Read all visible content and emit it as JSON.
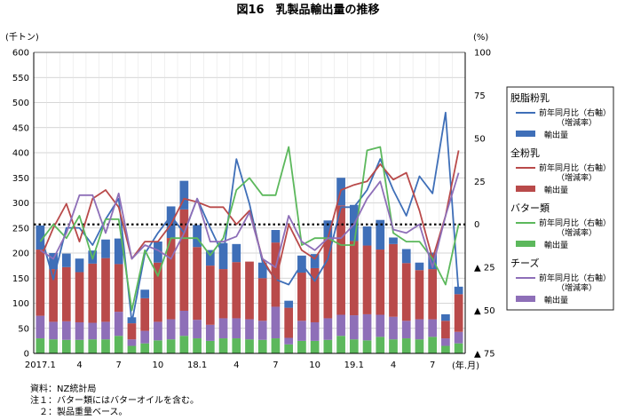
{
  "chart_data": {
    "type": "bar",
    "title": "図16　乳製品輸出量の推移",
    "left_axis_unit": "(千トン)",
    "right_axis_unit": "(%)",
    "x_axis_unit": "(年.月)",
    "ylim_left": [
      0,
      600
    ],
    "ylim_right": [
      -75,
      100
    ],
    "yticks_left": [
      "0",
      "50",
      "100",
      "150",
      "200",
      "250",
      "300",
      "350",
      "400",
      "450",
      "500",
      "550",
      "600"
    ],
    "yticks_right": [
      {
        "value": 100,
        "label": "100"
      },
      {
        "value": 75,
        "label": "75"
      },
      {
        "value": 50,
        "label": "50"
      },
      {
        "value": 25,
        "label": "25"
      },
      {
        "value": 0,
        "label": "0"
      },
      {
        "value": -25,
        "label": "▲ 25"
      },
      {
        "value": -50,
        "label": "▲ 50"
      },
      {
        "value": -75,
        "label": "▲ 75"
      }
    ],
    "x_tick_labels": [
      {
        "index": 0,
        "label": "2017.1"
      },
      {
        "index": 3,
        "label": "4"
      },
      {
        "index": 6,
        "label": "7"
      },
      {
        "index": 9,
        "label": "10"
      },
      {
        "index": 12,
        "label": "18.1"
      },
      {
        "index": 15,
        "label": "4"
      },
      {
        "index": 18,
        "label": "7"
      },
      {
        "index": 21,
        "label": "10"
      },
      {
        "index": 24,
        "label": "19.1"
      },
      {
        "index": 27,
        "label": "4"
      },
      {
        "index": 30,
        "label": "7"
      }
    ],
    "months": [
      "2017.1",
      "2017.2",
      "2017.3",
      "2017.4",
      "2017.5",
      "2017.6",
      "2017.7",
      "2017.8",
      "2017.9",
      "2017.10",
      "2017.11",
      "2017.12",
      "2018.1",
      "2018.2",
      "2018.3",
      "2018.4",
      "2018.5",
      "2018.6",
      "2018.7",
      "2018.8",
      "2018.9",
      "2018.10",
      "2018.11",
      "2018.12",
      "2019.1",
      "2019.2",
      "2019.3",
      "2019.4",
      "2019.5",
      "2019.6",
      "2019.7",
      "2019.8",
      "2019.9"
    ],
    "stack_series": [
      {
        "name": "バター類 輸出量",
        "color": "#5cb85c",
        "values": [
          30,
          28,
          27,
          27,
          28,
          28,
          35,
          15,
          20,
          26,
          28,
          35,
          30,
          25,
          30,
          30,
          28,
          27,
          30,
          18,
          25,
          25,
          27,
          35,
          28,
          26,
          33,
          28,
          30,
          28,
          33,
          15,
          20
        ]
      },
      {
        "name": "チーズ 輸出量",
        "color": "#8e6fb8",
        "values": [
          45,
          35,
          37,
          35,
          33,
          35,
          48,
          13,
          25,
          37,
          40,
          50,
          37,
          32,
          40,
          40,
          40,
          38,
          63,
          13,
          40,
          37,
          43,
          42,
          48,
          52,
          44,
          45,
          35,
          40,
          35,
          15,
          23
        ]
      },
      {
        "name": "全粉乳 輸出量",
        "color": "#b94a4a",
        "values": [
          132,
          105,
          108,
          100,
          118,
          127,
          95,
          32,
          65,
          118,
          162,
          202,
          145,
          118,
          98,
          112,
          115,
          85,
          128,
          60,
          96,
          108,
          158,
          218,
          148,
          137,
          130,
          145,
          115,
          98,
          100,
          35,
          75
        ]
      },
      {
        "name": "脱脂粉乳 輸出量",
        "color": "#3f6fb8",
        "values": [
          48,
          32,
          27,
          27,
          26,
          37,
          51,
          12,
          17,
          42,
          63,
          57,
          44,
          31,
          52,
          36,
          0,
          31,
          25,
          14,
          34,
          28,
          37,
          55,
          72,
          38,
          59,
          13,
          28,
          15,
          33,
          13,
          15
        ]
      }
    ],
    "line_series": [
      {
        "name": "脱脂粉乳 前年同月比(増減率)",
        "color": "#3f6fb8",
        "values": [
          -5,
          -32,
          -2,
          -2,
          -12,
          3,
          15,
          -57,
          -17,
          -5,
          5,
          -5,
          15,
          -2,
          -18,
          38,
          12,
          -22,
          -32,
          -35,
          -23,
          -33,
          -20,
          10,
          10,
          20,
          38,
          20,
          5,
          28,
          18,
          65,
          -40
        ]
      },
      {
        "name": "全粉乳 前年同月比(増減率)",
        "color": "#b94a4a",
        "values": [
          -20,
          -2,
          12,
          -10,
          15,
          20,
          10,
          -20,
          -10,
          -10,
          0,
          15,
          13,
          10,
          10,
          0,
          8,
          -20,
          -33,
          0,
          -15,
          -20,
          -8,
          20,
          23,
          25,
          35,
          26,
          30,
          8,
          -20,
          5,
          43
        ]
      },
      {
        "name": "バター類 前年同月比(増減率)",
        "color": "#5cb85c",
        "values": [
          -10,
          0,
          -8,
          5,
          -20,
          3,
          3,
          -50,
          -15,
          -30,
          -8,
          -8,
          -8,
          -18,
          -8,
          20,
          27,
          17,
          17,
          45,
          -12,
          -8,
          -8,
          -12,
          -12,
          43,
          45,
          -5,
          -10,
          -10,
          -20,
          -35,
          0
        ]
      },
      {
        "name": "チーズ 前年同月比(増減率)",
        "color": "#8e6fb8",
        "values": [
          -15,
          -20,
          -5,
          17,
          17,
          -5,
          18,
          -20,
          -12,
          -15,
          -20,
          -5,
          15,
          -10,
          -10,
          -7,
          7,
          -20,
          -25,
          5,
          -10,
          -15,
          -8,
          -8,
          0,
          15,
          25,
          -3,
          -5,
          0,
          -25,
          5,
          30
        ]
      }
    ],
    "zero_line": {
      "value": 0,
      "style": "dotted"
    },
    "grid": true,
    "legend_placement": "right",
    "legend": [
      {
        "group": "脱脂粉乳",
        "color": "#3f6fb8",
        "line_label": "前年同月比（右軸）",
        "line_label2": "（増減率）",
        "bar_label": "輸出量"
      },
      {
        "group": "全粉乳",
        "color": "#b94a4a",
        "line_label": "前年同月比（右軸）",
        "line_label2": "（増減率）",
        "bar_label": "輸出量"
      },
      {
        "group": "バター類",
        "color": "#5cb85c",
        "line_label": "前年同月比（右軸）",
        "line_label2": "（増減率）",
        "bar_label": "輸出量"
      },
      {
        "group": "チーズ",
        "color": "#8e6fb8",
        "line_label": "前年同月比（右軸）",
        "line_label2": "（増減率）",
        "bar_label": "輸出量"
      }
    ]
  },
  "notes": {
    "source": "資料：NZ統計局",
    "note1": "注１：バター類にはバターオイルを含む。",
    "note2": "　２：製品重量ベース。"
  }
}
